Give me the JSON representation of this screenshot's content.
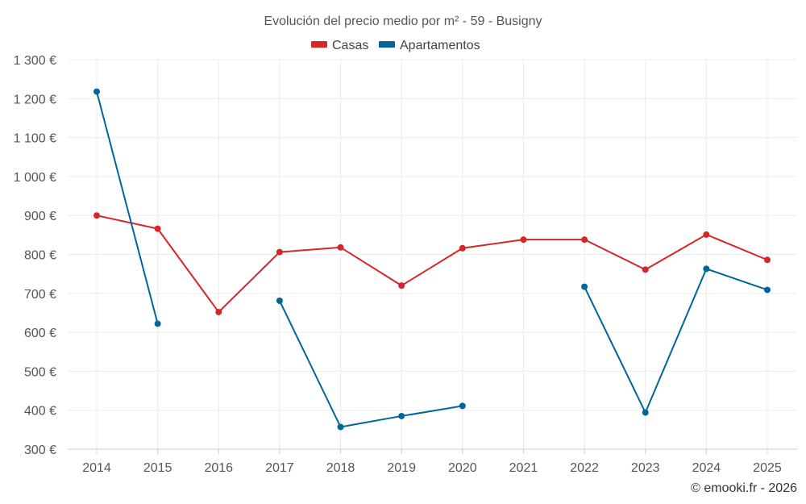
{
  "chart_data": {
    "type": "line",
    "title": "Evolución del precio medio por m² - 59 - Busigny",
    "categories": [
      "2014",
      "2015",
      "2016",
      "2017",
      "2018",
      "2019",
      "2020",
      "2021",
      "2022",
      "2023",
      "2024",
      "2025"
    ],
    "series": [
      {
        "name": "Casas",
        "color": "#d62728",
        "values": [
          900,
          866,
          652,
          806,
          818,
          720,
          816,
          838,
          838,
          761,
          851,
          786
        ]
      },
      {
        "name": "Apartamentos",
        "color": "#006699",
        "values": [
          1218,
          622,
          null,
          681,
          357,
          385,
          411,
          null,
          717,
          394,
          763,
          709
        ]
      }
    ],
    "ylim": [
      300,
      1300
    ],
    "yticks": [
      300,
      400,
      500,
      600,
      700,
      800,
      900,
      1000,
      1100,
      1200,
      1300
    ],
    "ytick_labels": [
      "300 €",
      "400 €",
      "500 €",
      "600 €",
      "700 €",
      "800 €",
      "900 €",
      "1 000 €",
      "1 100 €",
      "1 200 €",
      "1 300 €"
    ],
    "grid": true,
    "legend_position": "top-center",
    "credit": "© emooki.fr - 2026"
  }
}
